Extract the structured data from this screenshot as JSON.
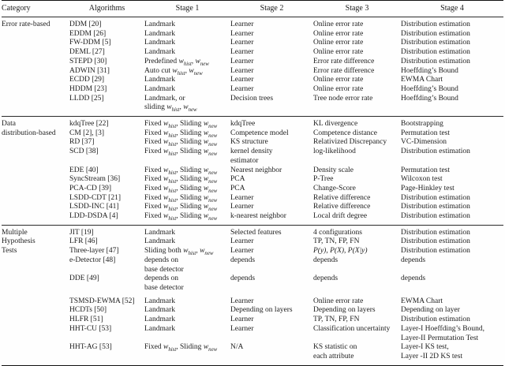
{
  "page": {
    "background": "#fefefe",
    "text_color": "#1c1c1c",
    "rule_color": "#111111"
  },
  "table": {
    "headers": [
      "Category",
      "Algorithms",
      "Stage 1",
      "Stage 2",
      "Stage 3",
      "Stage 4"
    ],
    "column_keys": [
      "algorithm",
      "stage1",
      "stage2",
      "stage3",
      "stage4"
    ],
    "sections": [
      {
        "category": [
          "Error rate-based"
        ],
        "rows": [
          {
            "algorithm": "DDM [20]",
            "stage1": [
              "Landmark"
            ],
            "stage2": [
              "Learner"
            ],
            "stage3": [
              "Online error rate"
            ],
            "stage4": [
              "Distribution estimation"
            ]
          },
          {
            "algorithm": "EDDM [26]",
            "stage1": [
              "Landmark"
            ],
            "stage2": [
              "Learner"
            ],
            "stage3": [
              "Online error rate"
            ],
            "stage4": [
              "Distribution estimation"
            ]
          },
          {
            "algorithm": "FW-DDM [5]",
            "stage1": [
              "Landmark"
            ],
            "stage2": [
              "Learner"
            ],
            "stage3": [
              "Online error rate"
            ],
            "stage4": [
              "Distribution estimation"
            ]
          },
          {
            "algorithm": "DEML [27]",
            "stage1": [
              "Landmark"
            ],
            "stage2": [
              "Learner"
            ],
            "stage3": [
              "Online error rate"
            ],
            "stage4": [
              "Distribution estimation"
            ]
          },
          {
            "algorithm": "STEPD [30]",
            "stage1": [
              "Predefined $w_hist$, $w_new$"
            ],
            "stage2": [
              "Learner"
            ],
            "stage3": [
              "Error rate difference"
            ],
            "stage4": [
              "Distribution estimation"
            ]
          },
          {
            "algorithm": "ADWIN [31]",
            "stage1": [
              "Auto cut $w_hist$, $w_new$"
            ],
            "stage2": [
              "Learner"
            ],
            "stage3": [
              "Error rate difference"
            ],
            "stage4": [
              "Hoeffding’s Bound"
            ]
          },
          {
            "algorithm": "ECDD [29]",
            "stage1": [
              "Landmark"
            ],
            "stage2": [
              "Learner"
            ],
            "stage3": [
              "Online error rate"
            ],
            "stage4": [
              "EWMA Chart"
            ]
          },
          {
            "algorithm": "HDDM [23]",
            "stage1": [
              "Landmark"
            ],
            "stage2": [
              "Learner"
            ],
            "stage3": [
              "Online error rate"
            ],
            "stage4": [
              "Hoeffding’s Bound"
            ]
          },
          {
            "algorithm": "LLDD [25]",
            "stage1": [
              "Landmark, or",
              "sliding $w_hist$, $w_new$"
            ],
            "stage2": [
              "Decision trees"
            ],
            "stage3": [
              "Tree node error rate"
            ],
            "stage4": [
              "Hoeffding’s Bound"
            ]
          }
        ]
      },
      {
        "category": [
          "Data",
          "distribution-based"
        ],
        "rows": [
          {
            "algorithm": "kdqTree [22]",
            "stage1": [
              "Fixed $w_hist$, Sliding $w_new$"
            ],
            "stage2": [
              "kdqTree"
            ],
            "stage3": [
              "KL divergence"
            ],
            "stage4": [
              "Bootstrapping"
            ]
          },
          {
            "algorithm": "CM [2], [3]",
            "stage1": [
              "Fixed $w_hist$, Sliding $w_new$"
            ],
            "stage2": [
              "Competence model"
            ],
            "stage3": [
              "Competence distance"
            ],
            "stage4": [
              "Permutation test"
            ]
          },
          {
            "algorithm": "RD [37]",
            "stage1": [
              "Fixed $w_hist$, Sliding $w_new$"
            ],
            "stage2": [
              "KS structure"
            ],
            "stage3": [
              "Relativized Discrepancy"
            ],
            "stage4": [
              "VC-Dimension"
            ]
          },
          {
            "algorithm": "SCD [38]",
            "stage1": [
              "Fixed $w_hist$, Sliding $w_new$"
            ],
            "stage2": [
              "kernel density",
              "estimator"
            ],
            "stage3": [
              "log-likelihood"
            ],
            "stage4": [
              "Distribution estimation"
            ]
          },
          {
            "algorithm": "EDE [40]",
            "stage1": [
              "Fixed $w_hist$, Sliding $w_new$"
            ],
            "stage2": [
              "Nearest neighbor"
            ],
            "stage3": [
              "Density scale"
            ],
            "stage4": [
              "Permutation test"
            ]
          },
          {
            "algorithm": "SyncStream [36]",
            "stage1": [
              "Fixed $w_hist$, Sliding $w_new$"
            ],
            "stage2": [
              "PCA"
            ],
            "stage3": [
              "P-Tree"
            ],
            "stage4": [
              "Wilcoxon test"
            ]
          },
          {
            "algorithm": "PCA-CD [39]",
            "stage1": [
              "Fixed $w_hist$, Sliding $w_new$"
            ],
            "stage2": [
              "PCA"
            ],
            "stage3": [
              "Change-Score"
            ],
            "stage4": [
              "Page-Hinkley test"
            ]
          },
          {
            "algorithm": "LSDD-CDT [21]",
            "stage1": [
              "Fixed $w_hist$, Sliding $w_new$"
            ],
            "stage2": [
              "Learner"
            ],
            "stage3": [
              "Relative difference"
            ],
            "stage4": [
              "Distribution estimation"
            ]
          },
          {
            "algorithm": "LSDD-INC [41]",
            "stage1": [
              "Fixed $w_hist$, Sliding $w_new$"
            ],
            "stage2": [
              "Learner"
            ],
            "stage3": [
              "Relative difference"
            ],
            "stage4": [
              "Distribution estimation"
            ]
          },
          {
            "algorithm": "LDD-DSDA [4]",
            "stage1": [
              "Fixed $w_hist$, Sliding $w_new$"
            ],
            "stage2": [
              "k-nearest neighbor"
            ],
            "stage3": [
              "Local drift degree"
            ],
            "stage4": [
              "Distribution estimation"
            ]
          }
        ]
      },
      {
        "category": [
          "Multiple",
          "Hypothesis",
          "Tests"
        ],
        "rows": [
          {
            "algorithm": "JIT [19]",
            "stage1": [
              "Landmark"
            ],
            "stage2": [
              "Selected features"
            ],
            "stage3": [
              "4 configurations"
            ],
            "stage4": [
              "Distribution estimation"
            ]
          },
          {
            "algorithm": "LFR [46]",
            "stage1": [
              "Landmark"
            ],
            "stage2": [
              "Learner"
            ],
            "stage3": [
              "TP, TN, FP, FN"
            ],
            "stage4": [
              "Distribution estimation"
            ]
          },
          {
            "algorithm": "Three-layer [47]",
            "stage1": [
              "Sliding both $w_hist$, $w_new$"
            ],
            "stage2": [
              "Learner"
            ],
            "stage3": [
              "$P(y)$, $P(X)$, $P(X|y)$"
            ],
            "stage4": [
              "Distribution estimation"
            ]
          },
          {
            "algorithm": "e-Detector [48]",
            "stage1": [
              "depends on",
              "base detector"
            ],
            "stage2": [
              "depends"
            ],
            "stage3": [
              "depends"
            ],
            "stage4": [
              "depends"
            ]
          },
          {
            "algorithm": "DDE [49]",
            "stage1": [
              "depends on",
              "base detector"
            ],
            "stage2": [
              "depends"
            ],
            "stage3": [
              "depends"
            ],
            "stage4": [
              "depends"
            ]
          },
          {
            "algorithm": "TSMSD-EWMA [52]",
            "gap_before": true,
            "stage1": [
              "Landmark"
            ],
            "stage2": [
              "Learner"
            ],
            "stage3": [
              "Online error rate"
            ],
            "stage4": [
              "EWMA Chart"
            ]
          },
          {
            "algorithm": "HCDTs [50]",
            "stage1": [
              "Landmark"
            ],
            "stage2": [
              "Depending on layers"
            ],
            "stage3": [
              "Depending on layers"
            ],
            "stage4": [
              "Depending on layer"
            ]
          },
          {
            "algorithm": "HLFR [51]",
            "stage1": [
              "Landmark"
            ],
            "stage2": [
              "Learner"
            ],
            "stage3": [
              "TP, TN, FP, FN"
            ],
            "stage4": [
              "Distribution estimation"
            ]
          },
          {
            "algorithm": "HHT-CU [53]",
            "stage1": [
              "Landmark"
            ],
            "stage2": [
              "Learner"
            ],
            "stage3": [
              "Classification uncertainty"
            ],
            "stage4": [
              "Layer-I Hoeffding’s Bound,",
              "Layer-II Permutation Test"
            ]
          },
          {
            "algorithm": "HHT-AG [53]",
            "stage1": [
              "Fixed $w_hist$, Sliding $w_new$"
            ],
            "stage2": [
              "N/A"
            ],
            "stage3": [
              "KS statistic on",
              "each attribute"
            ],
            "stage4": [
              "Layer-I KS test,",
              "Layer -II 2D KS test"
            ]
          }
        ]
      }
    ]
  }
}
